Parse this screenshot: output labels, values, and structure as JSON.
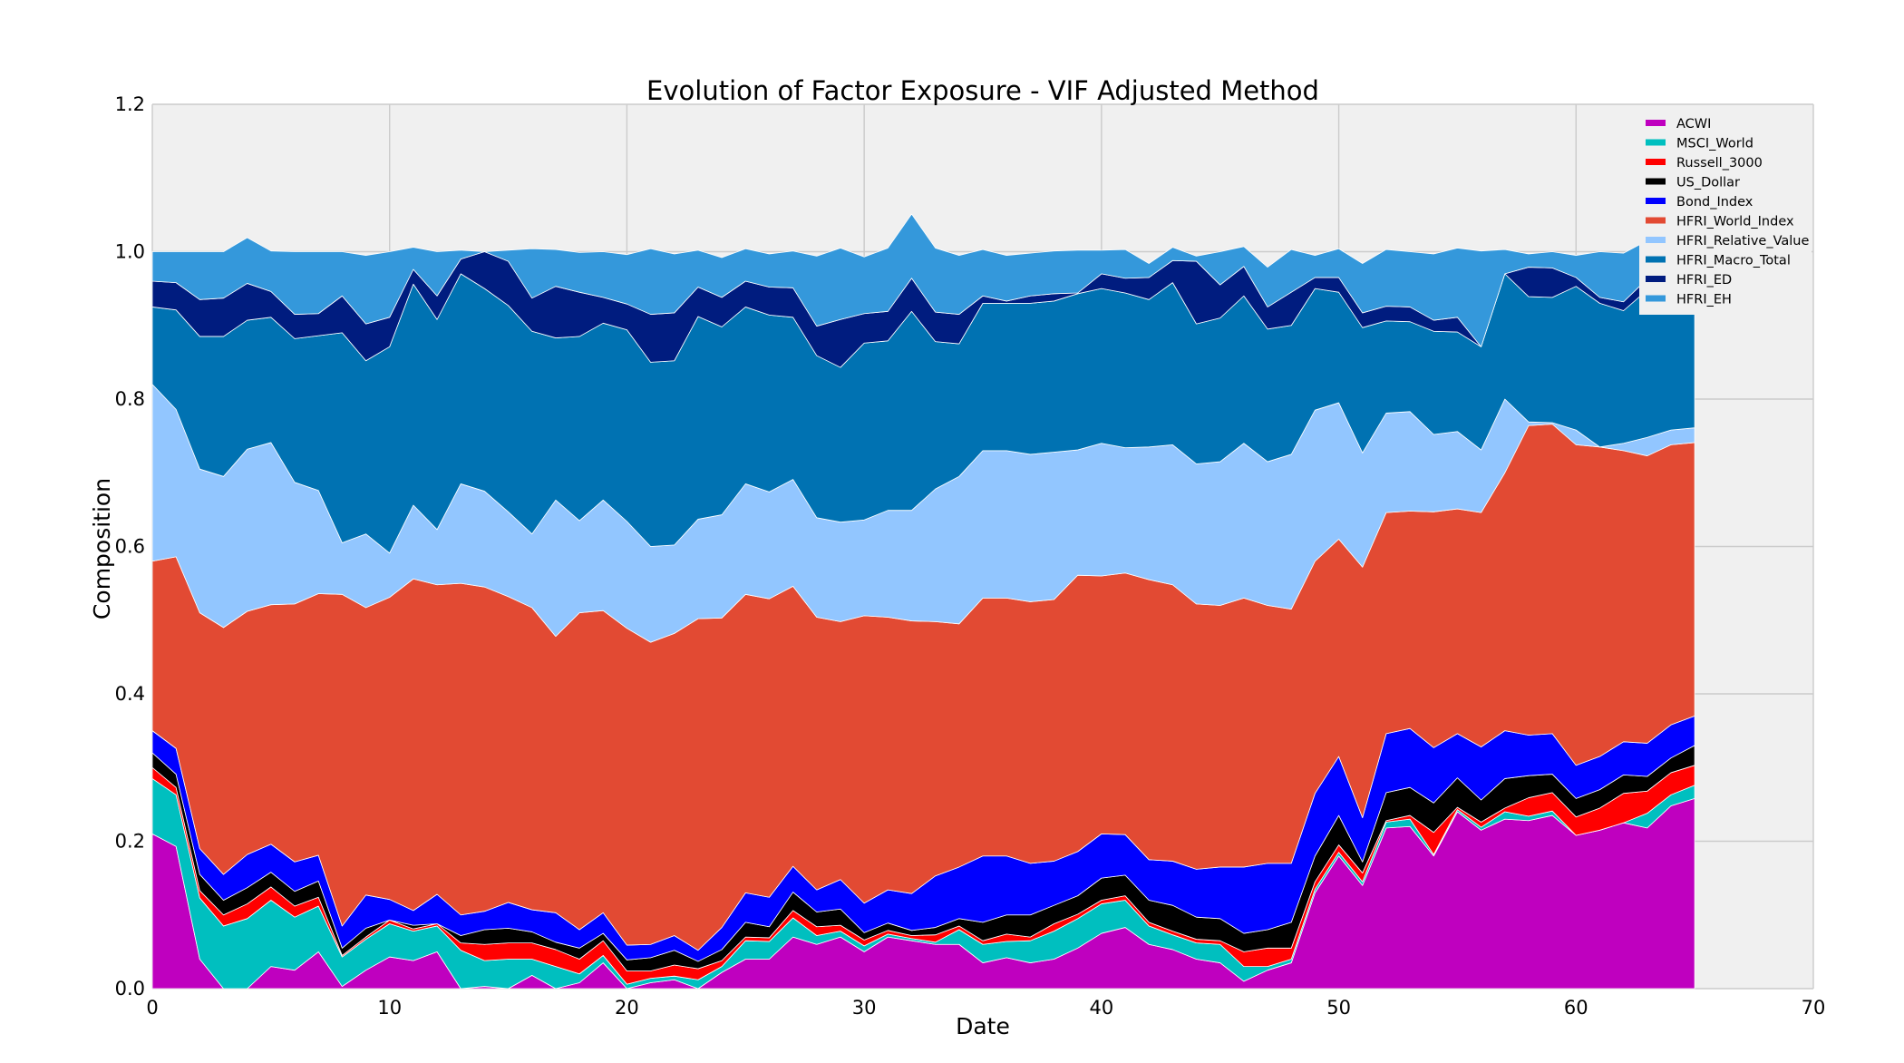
{
  "chart_data": {
    "type": "area",
    "stacked": true,
    "title": "Evolution of Factor Exposure - VIF Adjusted Method",
    "xlabel": "Date",
    "ylabel": "Composition",
    "xlim": [
      0,
      70
    ],
    "ylim": [
      0,
      1.2
    ],
    "xticks": [
      0,
      10,
      20,
      30,
      40,
      50,
      60,
      70
    ],
    "yticks": [
      0.0,
      0.2,
      0.4,
      0.6,
      0.8,
      1.0,
      1.2
    ],
    "grid": true,
    "legend_position": "top-right",
    "x": [
      0,
      1,
      2,
      3,
      4,
      5,
      6,
      7,
      8,
      9,
      10,
      11,
      12,
      13,
      14,
      15,
      16,
      17,
      18,
      19,
      20,
      21,
      22,
      23,
      24,
      25,
      26,
      27,
      28,
      29,
      30,
      31,
      32,
      33,
      34,
      35,
      36,
      37,
      38,
      39,
      40,
      41,
      42,
      43,
      44,
      45,
      46,
      47,
      48,
      49,
      50,
      51,
      52,
      53,
      54,
      55,
      56,
      57,
      58,
      59,
      60,
      61,
      62,
      63,
      64,
      65
    ],
    "series": [
      {
        "name": "ACWI",
        "color": "#bf00bf",
        "values": [
          0.21,
          0.193,
          0.04,
          0.0,
          0.0,
          0.03,
          0.025,
          0.05,
          0.003,
          0.025,
          0.043,
          0.038,
          0.05,
          0.0,
          0.003,
          0.0,
          0.018,
          0.0,
          0.008,
          0.035,
          0.0,
          0.008,
          0.012,
          0.0,
          0.022,
          0.04,
          0.04,
          0.07,
          0.06,
          0.07,
          0.05,
          0.07,
          0.065,
          0.06,
          0.06,
          0.035,
          0.042,
          0.035,
          0.04,
          0.055,
          0.075,
          0.083,
          0.06,
          0.053,
          0.04,
          0.035,
          0.01,
          0.025,
          0.035,
          0.13,
          0.18,
          0.14,
          0.218,
          0.22,
          0.18,
          0.24,
          0.215,
          0.23,
          0.228,
          0.235,
          0.208,
          0.215,
          0.225,
          0.218,
          0.248,
          0.258
        ]
      },
      {
        "name": "MSCI_World",
        "color": "#00bfbf",
        "values": [
          0.075,
          0.07,
          0.083,
          0.085,
          0.095,
          0.09,
          0.072,
          0.062,
          0.04,
          0.042,
          0.045,
          0.04,
          0.035,
          0.052,
          0.035,
          0.04,
          0.022,
          0.03,
          0.012,
          0.01,
          0.006,
          0.006,
          0.005,
          0.012,
          0.008,
          0.025,
          0.024,
          0.026,
          0.012,
          0.008,
          0.008,
          0.004,
          0.003,
          0.003,
          0.02,
          0.025,
          0.022,
          0.03,
          0.038,
          0.04,
          0.04,
          0.037,
          0.025,
          0.02,
          0.022,
          0.025,
          0.02,
          0.005,
          0.005,
          0.005,
          0.005,
          0.005,
          0.008,
          0.01,
          0.002,
          0.003,
          0.004,
          0.01,
          0.006,
          0.006,
          0.0,
          0.0,
          0.0,
          0.02,
          0.015,
          0.018
        ]
      },
      {
        "name": "Russell_3000",
        "color": "#ff0000",
        "values": [
          0.015,
          0.01,
          0.01,
          0.015,
          0.02,
          0.018,
          0.015,
          0.012,
          0.002,
          0.003,
          0.005,
          0.003,
          0.003,
          0.01,
          0.022,
          0.022,
          0.022,
          0.023,
          0.02,
          0.02,
          0.018,
          0.01,
          0.015,
          0.015,
          0.008,
          0.005,
          0.005,
          0.01,
          0.012,
          0.008,
          0.008,
          0.005,
          0.004,
          0.01,
          0.005,
          0.005,
          0.01,
          0.005,
          0.01,
          0.006,
          0.005,
          0.006,
          0.005,
          0.005,
          0.005,
          0.005,
          0.02,
          0.025,
          0.015,
          0.01,
          0.01,
          0.012,
          0.002,
          0.005,
          0.03,
          0.003,
          0.007,
          0.005,
          0.025,
          0.025,
          0.025,
          0.03,
          0.04,
          0.03,
          0.03,
          0.027
        ]
      },
      {
        "name": "US_Dollar",
        "color": "#000000",
        "values": [
          0.02,
          0.018,
          0.022,
          0.02,
          0.022,
          0.02,
          0.02,
          0.022,
          0.01,
          0.012,
          0.0,
          0.005,
          0.0,
          0.01,
          0.02,
          0.02,
          0.015,
          0.01,
          0.015,
          0.01,
          0.015,
          0.018,
          0.02,
          0.01,
          0.015,
          0.02,
          0.015,
          0.025,
          0.02,
          0.022,
          0.01,
          0.01,
          0.007,
          0.01,
          0.01,
          0.025,
          0.026,
          0.03,
          0.025,
          0.025,
          0.03,
          0.028,
          0.03,
          0.035,
          0.03,
          0.03,
          0.025,
          0.025,
          0.035,
          0.035,
          0.04,
          0.015,
          0.038,
          0.038,
          0.04,
          0.04,
          0.03,
          0.04,
          0.03,
          0.025,
          0.025,
          0.025,
          0.025,
          0.02,
          0.02,
          0.027
        ]
      },
      {
        "name": "Bond_Index",
        "color": "#0000ff",
        "values": [
          0.03,
          0.035,
          0.035,
          0.035,
          0.045,
          0.038,
          0.04,
          0.035,
          0.03,
          0.045,
          0.028,
          0.02,
          0.04,
          0.028,
          0.025,
          0.035,
          0.03,
          0.04,
          0.025,
          0.028,
          0.02,
          0.018,
          0.02,
          0.015,
          0.03,
          0.04,
          0.04,
          0.035,
          0.03,
          0.04,
          0.04,
          0.045,
          0.05,
          0.07,
          0.07,
          0.09,
          0.08,
          0.07,
          0.06,
          0.06,
          0.06,
          0.055,
          0.055,
          0.06,
          0.065,
          0.07,
          0.09,
          0.09,
          0.08,
          0.085,
          0.08,
          0.06,
          0.08,
          0.08,
          0.075,
          0.06,
          0.072,
          0.065,
          0.055,
          0.055,
          0.045,
          0.045,
          0.045,
          0.045,
          0.045,
          0.04
        ]
      },
      {
        "name": "HFRI_World_Index",
        "color": "#e24a33",
        "values": [
          0.23,
          0.26,
          0.32,
          0.335,
          0.33,
          0.325,
          0.35,
          0.355,
          0.45,
          0.39,
          0.41,
          0.45,
          0.42,
          0.45,
          0.44,
          0.415,
          0.41,
          0.375,
          0.43,
          0.41,
          0.43,
          0.41,
          0.41,
          0.45,
          0.42,
          0.405,
          0.405,
          0.38,
          0.37,
          0.35,
          0.39,
          0.37,
          0.37,
          0.345,
          0.33,
          0.35,
          0.35,
          0.355,
          0.355,
          0.375,
          0.35,
          0.355,
          0.38,
          0.375,
          0.36,
          0.355,
          0.365,
          0.35,
          0.345,
          0.315,
          0.295,
          0.34,
          0.3,
          0.295,
          0.32,
          0.305,
          0.318,
          0.35,
          0.42,
          0.42,
          0.435,
          0.42,
          0.395,
          0.39,
          0.38,
          0.371
        ]
      },
      {
        "name": "HFRI_Relative_Value",
        "color": "#92c6ff",
        "values": [
          0.24,
          0.2,
          0.195,
          0.205,
          0.22,
          0.22,
          0.165,
          0.14,
          0.07,
          0.1,
          0.06,
          0.1,
          0.075,
          0.135,
          0.13,
          0.115,
          0.1,
          0.185,
          0.125,
          0.15,
          0.145,
          0.13,
          0.12,
          0.135,
          0.14,
          0.15,
          0.145,
          0.145,
          0.135,
          0.135,
          0.13,
          0.145,
          0.15,
          0.18,
          0.2,
          0.2,
          0.2,
          0.2,
          0.2,
          0.17,
          0.18,
          0.17,
          0.18,
          0.19,
          0.19,
          0.195,
          0.21,
          0.195,
          0.21,
          0.205,
          0.185,
          0.155,
          0.135,
          0.135,
          0.105,
          0.105,
          0.085,
          0.1,
          0.005,
          0.002,
          0.02,
          0.0,
          0.01,
          0.025,
          0.02,
          0.02
        ]
      },
      {
        "name": "HFRI_Macro_Total",
        "color": "#0072b2",
        "values": [
          0.105,
          0.135,
          0.18,
          0.19,
          0.175,
          0.17,
          0.195,
          0.21,
          0.285,
          0.235,
          0.28,
          0.3,
          0.285,
          0.285,
          0.275,
          0.28,
          0.275,
          0.22,
          0.25,
          0.24,
          0.26,
          0.25,
          0.25,
          0.275,
          0.255,
          0.24,
          0.24,
          0.22,
          0.22,
          0.21,
          0.24,
          0.23,
          0.27,
          0.2,
          0.18,
          0.2,
          0.2,
          0.205,
          0.205,
          0.212,
          0.21,
          0.21,
          0.2,
          0.22,
          0.19,
          0.195,
          0.2,
          0.18,
          0.175,
          0.165,
          0.15,
          0.17,
          0.125,
          0.122,
          0.14,
          0.135,
          0.14,
          0.17,
          0.17,
          0.17,
          0.195,
          0.195,
          0.18,
          0.2,
          0.21,
          0.2
        ]
      },
      {
        "name": "HFRI_ED",
        "color": "#001c7f",
        "values": [
          0.035,
          0.037,
          0.05,
          0.052,
          0.05,
          0.035,
          0.033,
          0.03,
          0.05,
          0.05,
          0.04,
          0.02,
          0.032,
          0.02,
          0.05,
          0.06,
          0.045,
          0.07,
          0.06,
          0.035,
          0.035,
          0.065,
          0.065,
          0.04,
          0.04,
          0.035,
          0.038,
          0.04,
          0.04,
          0.065,
          0.04,
          0.04,
          0.045,
          0.04,
          0.04,
          0.01,
          0.003,
          0.01,
          0.01,
          0.001,
          0.02,
          0.02,
          0.03,
          0.03,
          0.085,
          0.045,
          0.04,
          0.03,
          0.045,
          0.015,
          0.02,
          0.02,
          0.02,
          0.02,
          0.015,
          0.02,
          0.0,
          0.0,
          0.04,
          0.04,
          0.012,
          0.008,
          0.012,
          0.015,
          0.015,
          0.015
        ]
      },
      {
        "name": "HFRI_EH",
        "color": "#3498db",
        "values": [
          0.04,
          0.042,
          0.065,
          0.063,
          0.062,
          0.055,
          0.085,
          0.084,
          0.06,
          0.093,
          0.089,
          0.03,
          0.06,
          0.012,
          0.0,
          0.015,
          0.067,
          0.05,
          0.054,
          0.062,
          0.067,
          0.089,
          0.08,
          0.05,
          0.054,
          0.044,
          0.045,
          0.05,
          0.095,
          0.097,
          0.077,
          0.086,
          0.087,
          0.087,
          0.08,
          0.063,
          0.062,
          0.058,
          0.058,
          0.058,
          0.032,
          0.039,
          0.019,
          0.018,
          0.007,
          0.045,
          0.027,
          0.054,
          0.058,
          0.03,
          0.039,
          0.067,
          0.077,
          0.075,
          0.09,
          0.094,
          0.13,
          0.033,
          0.018,
          0.022,
          0.03,
          0.062,
          0.066,
          0.052,
          0.04,
          0.036
        ]
      }
    ]
  }
}
